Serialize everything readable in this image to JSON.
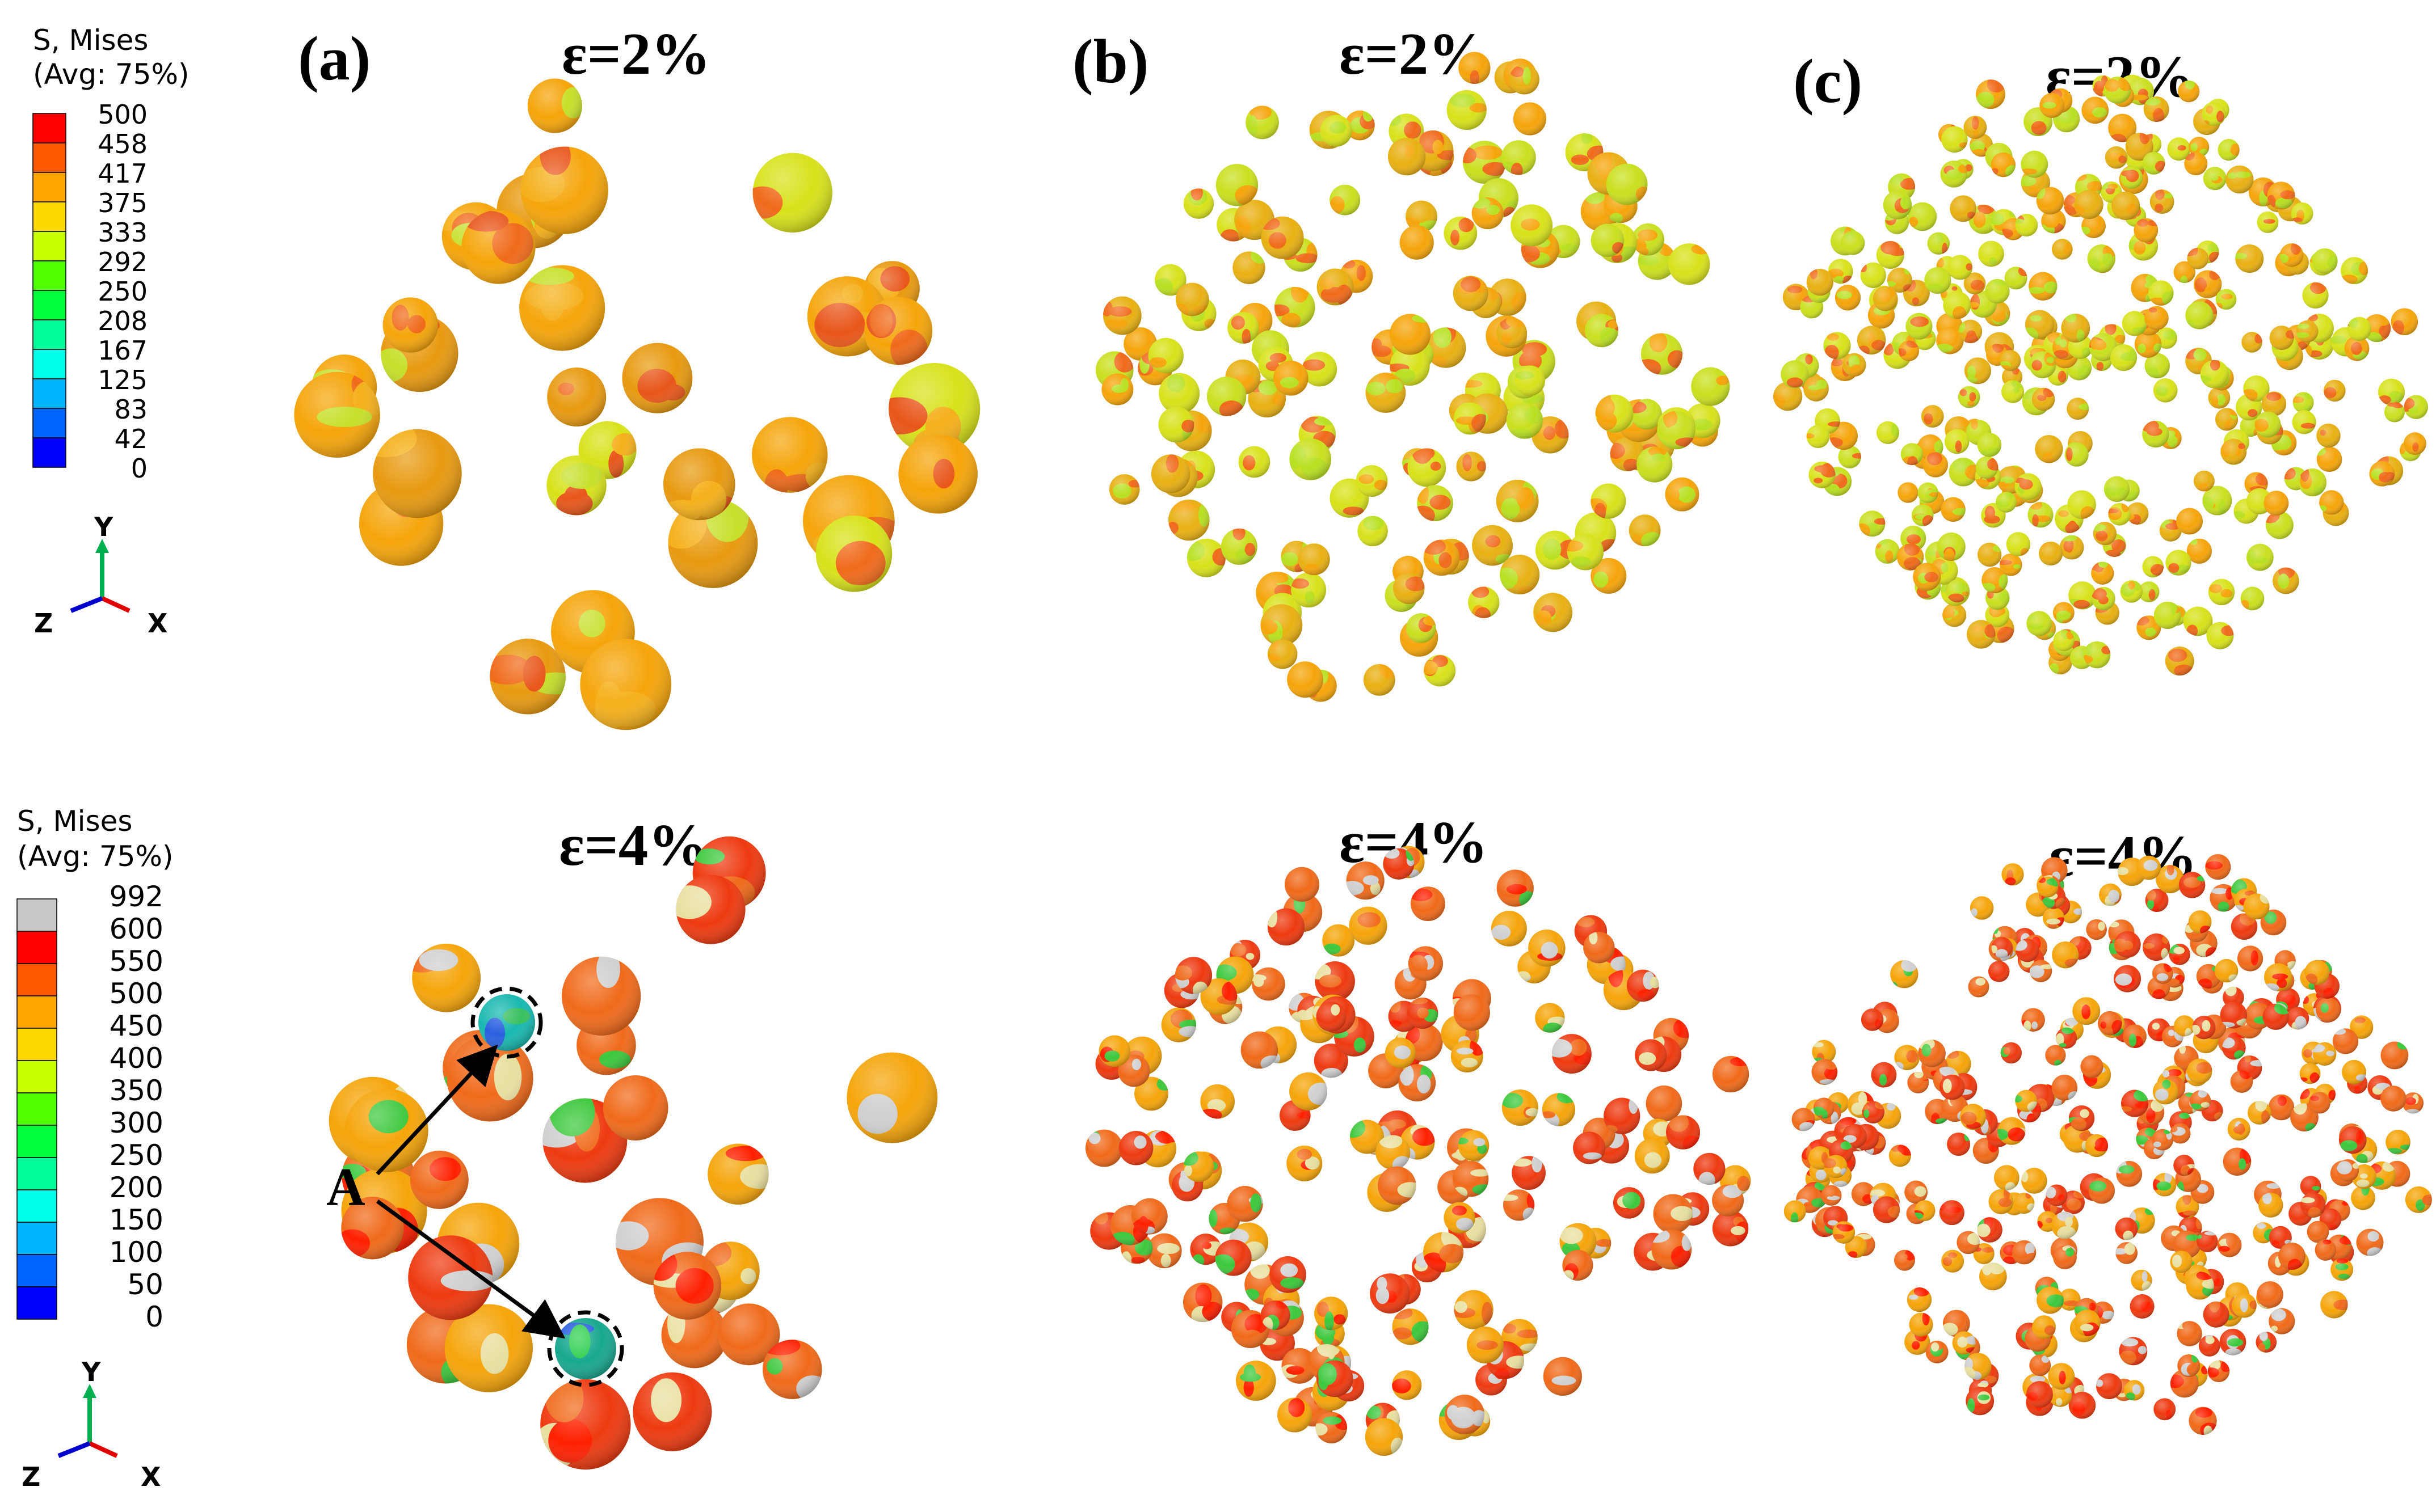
{
  "legends": [
    {
      "title": "S, Mises",
      "subtitle": "(Avg: 75%)",
      "ticks": [
        "500",
        "458",
        "417",
        "375",
        "333",
        "292",
        "250",
        "208",
        "167",
        "125",
        "83",
        "42",
        "0"
      ],
      "bands": [
        "#ff0000",
        "#ff5a00",
        "#ffa600",
        "#ffd800",
        "#c8ff00",
        "#50ff00",
        "#00ff3c",
        "#00ff9a",
        "#00ffe6",
        "#00b4ff",
        "#0064ff",
        "#0000ff"
      ]
    },
    {
      "title": "S, Mises",
      "subtitle": "(Avg: 75%)",
      "ticks": [
        "992",
        "600",
        "550",
        "500",
        "450",
        "400",
        "350",
        "300",
        "250",
        "200",
        "150",
        "100",
        "50",
        "0"
      ],
      "bands": [
        "#c8c8c8",
        "#ff0000",
        "#ff5a00",
        "#ffa600",
        "#ffd800",
        "#c8ff00",
        "#50ff00",
        "#00ff3c",
        "#00ff9a",
        "#00ffe6",
        "#00b4ff",
        "#0064ff",
        "#0000ff"
      ]
    }
  ],
  "triads": [
    {
      "y": "Y",
      "z": "Z",
      "x": "X"
    },
    {
      "y": "Y",
      "z": "Z",
      "x": "X"
    }
  ],
  "panels": [
    {
      "label": "(a)",
      "strain_top": "ε=2%",
      "strain_bottom": "ε=4%"
    },
    {
      "label": "(b)",
      "strain_top": "ε=2%",
      "strain_bottom": "ε=4%"
    },
    {
      "label": "(c)",
      "strain_top": "ε=2%",
      "strain_bottom": "ε=4%"
    }
  ],
  "annotation": {
    "label": "A"
  }
}
